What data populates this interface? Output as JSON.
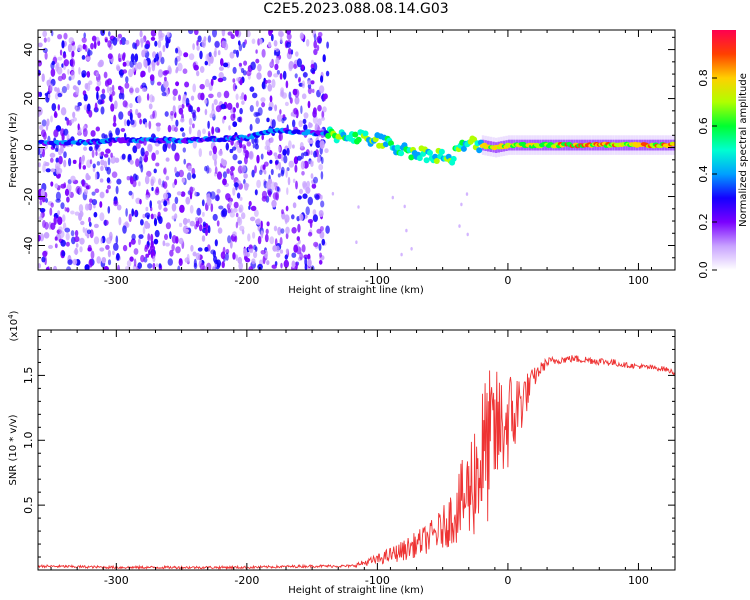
{
  "title": "C2E5.2023.088.08.14.G03",
  "chart_data": [
    {
      "type": "heatmap",
      "xlabel": "Height of straight line (km)",
      "ylabel": "Frequency (Hz)",
      "xlim": [
        -360,
        128
      ],
      "ylim": [
        -50,
        48
      ],
      "xticks": [
        -300,
        -200,
        -100,
        0,
        100
      ],
      "yticks": [
        -40,
        -20,
        0,
        20,
        40
      ],
      "colorbar": {
        "label": "Normalized spectral amplitude",
        "range": [
          0,
          1
        ],
        "ticks": [
          "0.0",
          "0.2",
          "0.4",
          "0.6",
          "0.8"
        ],
        "tick_values": [
          0.0,
          0.2,
          0.4,
          0.6,
          0.8
        ],
        "colors": [
          "#ffffff",
          "#c8a2ff",
          "#7a00ff",
          "#1400ff",
          "#00a0ff",
          "#00ffd0",
          "#00ff30",
          "#b0ff00",
          "#ffd000",
          "#ff4000",
          "#ff0050"
        ]
      },
      "signal_track": {
        "x": [
          -360,
          -330,
          -300,
          -250,
          -200,
          -180,
          -150,
          -130,
          -120,
          -110,
          -100,
          -90,
          -80,
          -70,
          -60,
          -50,
          -45,
          -40,
          -35,
          -30,
          -20,
          -10,
          0,
          20,
          50,
          100,
          128
        ],
        "freq": [
          2,
          2,
          3,
          3,
          4,
          7,
          6,
          5,
          5,
          4,
          3,
          1,
          -1,
          -2,
          -3,
          -3,
          -6,
          -2,
          0,
          2,
          1,
          0,
          1,
          1,
          1,
          1,
          1
        ]
      },
      "noise_region_x": [
        -360,
        -138
      ]
    },
    {
      "type": "line",
      "xlabel": "Height of straight line (km)",
      "ylabel": "SNR (10 * v/v)",
      "y_multiplier": "(x10",
      "y_multiplier_exp": "4",
      "xlim": [
        -360,
        128
      ],
      "ylim": [
        0,
        1.85
      ],
      "xticks": [
        -300,
        -200,
        -100,
        0,
        100
      ],
      "yticks": [
        0.5,
        1.0,
        1.5
      ],
      "ytick_labels": [
        "0.5",
        "1.0",
        "1.5"
      ],
      "series": [
        {
          "color": "#ee3333",
          "x": [
            -360,
            -300,
            -250,
            -200,
            -150,
            -120,
            -100,
            -80,
            -60,
            -50,
            -40,
            -30,
            -25,
            -20,
            -15,
            -10,
            -5,
            0,
            5,
            10,
            15,
            20,
            25,
            30,
            40,
            50,
            60,
            70,
            80,
            90,
            100,
            110,
            120,
            128
          ],
          "y": [
            0.03,
            0.02,
            0.02,
            0.02,
            0.03,
            0.03,
            0.08,
            0.15,
            0.25,
            0.32,
            0.45,
            0.6,
            0.75,
            0.85,
            0.95,
            1.05,
            1.1,
            1.15,
            1.2,
            1.3,
            1.38,
            1.48,
            1.55,
            1.6,
            1.62,
            1.63,
            1.62,
            1.61,
            1.6,
            1.58,
            1.57,
            1.56,
            1.55,
            1.52
          ],
          "noise_amplitude": [
            0.01,
            0.01,
            0.01,
            0.01,
            0.01,
            0.01,
            0.04,
            0.08,
            0.12,
            0.16,
            0.25,
            0.4,
            0.5,
            0.6,
            0.6,
            0.5,
            0.45,
            0.4,
            0.35,
            0.25,
            0.15,
            0.08,
            0.05,
            0.04,
            0.03,
            0.03,
            0.03,
            0.03,
            0.03,
            0.02,
            0.02,
            0.02,
            0.02,
            0.02
          ]
        }
      ]
    }
  ]
}
